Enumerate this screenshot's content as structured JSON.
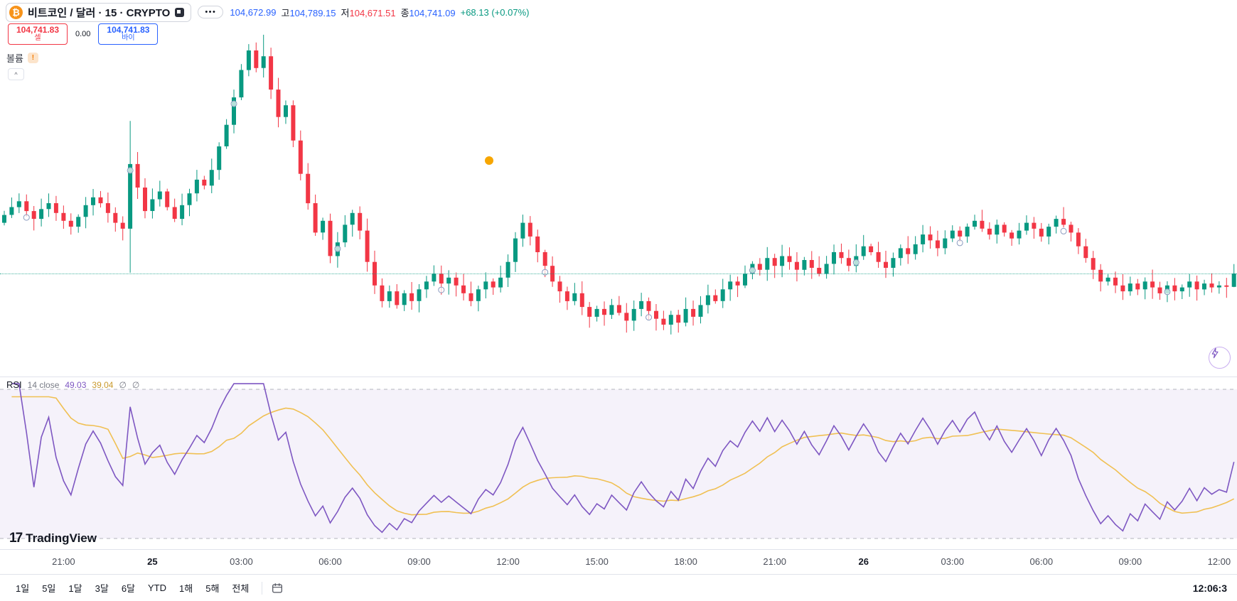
{
  "header": {
    "symbol_title": "비트코인 / 달러 · 15 · CRYPTO",
    "more_label": "•••",
    "ohlc": {
      "open_value": "104,672.99",
      "high_label": "고",
      "high_value": "104,789.15",
      "low_label": "저",
      "low_value": "104,671.51",
      "close_label": "종",
      "close_value": "104,741.09",
      "change_value": "+68.13 (+0.07%)"
    }
  },
  "trade_panel": {
    "sell_price": "104,741.83",
    "sell_label": "셀",
    "spread": "0.00",
    "buy_price": "104,741.83",
    "buy_label": "바이"
  },
  "legend": {
    "volume_label": "볼륨",
    "warning_badge": "!"
  },
  "rsi_legend": {
    "title": "RSI",
    "params": "14 close",
    "rsi_value": "49.03",
    "ma_value": "39.04",
    "empty_1": "∅",
    "empty_2": "∅"
  },
  "logo": {
    "mark": "17",
    "brand": "TradingView"
  },
  "time_axis": {
    "labels": [
      "21:00",
      "25",
      "03:00",
      "06:00",
      "09:00",
      "12:00",
      "15:00",
      "18:00",
      "21:00",
      "26",
      "03:00",
      "06:00",
      "09:00",
      "12:00"
    ]
  },
  "toolbar": {
    "ranges": [
      "1일",
      "5일",
      "1달",
      "3달",
      "6달",
      "YTD",
      "1해",
      "5해",
      "전체"
    ],
    "clock": "12:06:3"
  },
  "colors": {
    "up": "#089981",
    "down": "#f23645",
    "blue": "#2962ff",
    "red": "#f23645",
    "green": "#089981",
    "rsi": "#7e57c2",
    "rsi_ma": "#f0c053",
    "band": "rgba(126,87,194,0.08)",
    "btc_orange": "#f7931a",
    "marker_orange": "#f7a600"
  },
  "chart_data": {
    "type": "candlestick",
    "title": "비트코인 / 달러",
    "interval": "15",
    "exchange": "CRYPTO",
    "last_bar": {
      "open": 104672.99,
      "high": 104789.15,
      "low": 104671.51,
      "close": 104741.09,
      "change": "+68.13 (+0.07%)"
    },
    "price_line": 104741.09,
    "x_labels": [
      "21:00",
      "25",
      "03:00",
      "06:00",
      "09:00",
      "12:00",
      "15:00",
      "18:00",
      "21:00",
      "26",
      "03:00",
      "06:00",
      "09:00",
      "12:00"
    ],
    "closes": [
      105040,
      105080,
      105110,
      105060,
      105020,
      105070,
      105100,
      105050,
      105010,
      104980,
      105030,
      105090,
      105130,
      105100,
      105050,
      105000,
      104970,
      105300,
      105180,
      105060,
      105120,
      105160,
      105080,
      105020,
      105090,
      105150,
      105220,
      105190,
      105270,
      105390,
      105500,
      105640,
      105780,
      105880,
      105790,
      105850,
      105680,
      105540,
      105600,
      105420,
      105250,
      105100,
      104950,
      105010,
      104830,
      104900,
      104990,
      105050,
      104960,
      104800,
      104680,
      104600,
      104650,
      104580,
      104640,
      104600,
      104660,
      104700,
      104740,
      104690,
      104720,
      104680,
      104640,
      104600,
      104660,
      104700,
      104670,
      104720,
      104800,
      104920,
      105000,
      104930,
      104850,
      104780,
      104700,
      104650,
      104600,
      104640,
      104570,
      104520,
      104560,
      104530,
      104580,
      104540,
      104500,
      104560,
      104600,
      104550,
      104510,
      104480,
      104530,
      104490,
      104560,
      104520,
      104580,
      104630,
      104600,
      104660,
      104700,
      104680,
      104740,
      104790,
      104760,
      104820,
      104780,
      104830,
      104800,
      104760,
      104810,
      104770,
      104740,
      104790,
      104850,
      104820,
      104780,
      104830,
      104880,
      104850,
      104800,
      104770,
      104820,
      104870,
      104840,
      104890,
      104940,
      104910,
      104870,
      104920,
      104960,
      104930,
      104980,
      105010,
      104970,
      104940,
      104990,
      104950,
      104920,
      104960,
      105000,
      104970,
      104930,
      104980,
      105020,
      104990,
      104950,
      104880,
      104820,
      104760,
      104700,
      104720,
      104680,
      104650,
      104690,
      104660,
      104700,
      104670,
      104640,
      104680,
      104650,
      104670,
      104700,
      104660,
      104690,
      104670,
      104680,
      104672.99,
      104741.09
    ],
    "indicator": {
      "name": "RSI",
      "length": 14,
      "source": "close",
      "upper": 70,
      "lower": 30,
      "last_rsi": 49.03,
      "last_ma": 39.04
    }
  }
}
